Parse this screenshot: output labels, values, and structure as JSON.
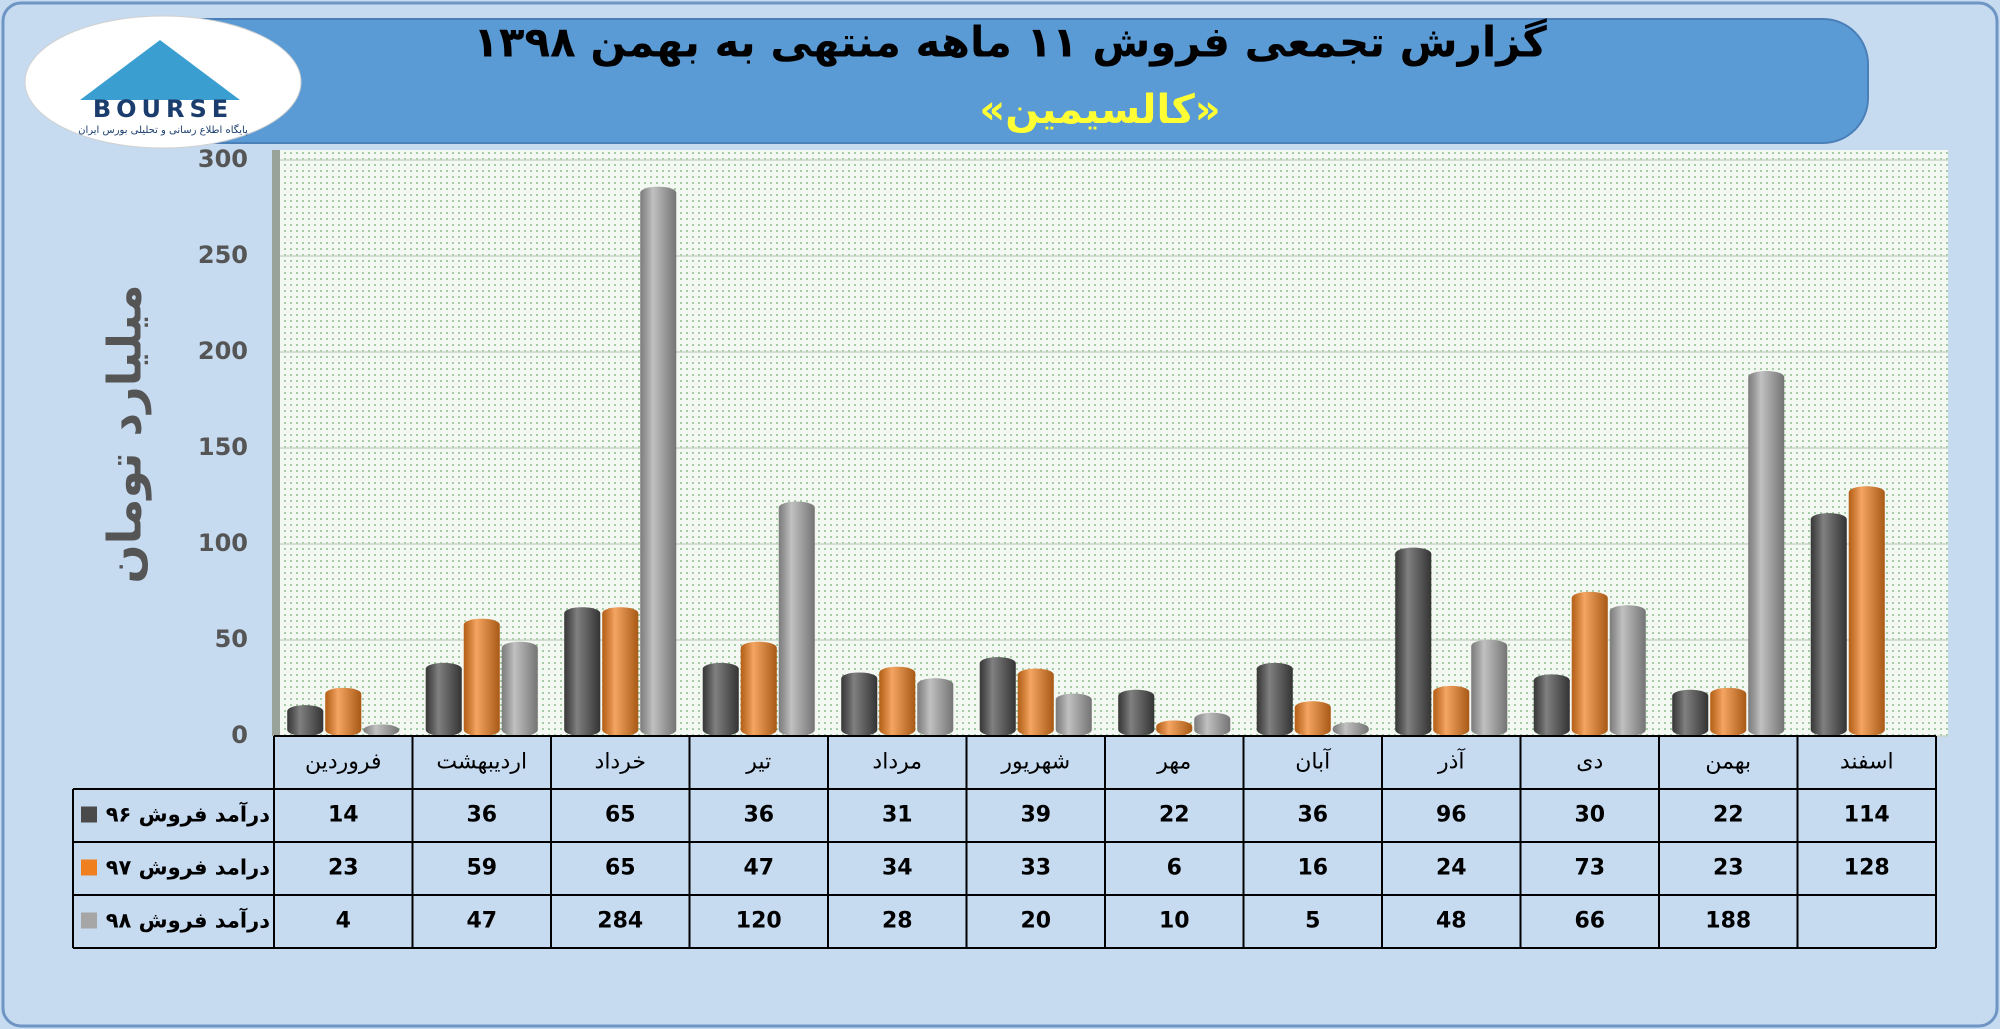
{
  "logo": {
    "brand": "BOURSE",
    "tagline": "پایگاه اطلاع رسانی و تحلیلی بورس ایران"
  },
  "chart_data": {
    "type": "bar",
    "title": "گزارش تجمعی فروش ۱۱ ماهه منتهی به بهمن ۱۳۹۸",
    "subtitle": "«کالسیمین»",
    "y_label": "میلیارد تومان",
    "categories": [
      "فروردین",
      "اردیبهشت",
      "خرداد",
      "تیر",
      "مرداد",
      "شهریور",
      "مهر",
      "آبان",
      "آذر",
      "دی",
      "بهمن",
      "اسفند"
    ],
    "series": [
      {
        "name": "درآمد فروش ۹۶",
        "color": "#4a4a4a",
        "values": [
          14,
          36,
          65,
          36,
          31,
          39,
          22,
          36,
          96,
          30,
          22,
          114
        ]
      },
      {
        "name": "درامد فروش ۹۷",
        "color": "#f07f1f",
        "values": [
          23,
          59,
          65,
          47,
          34,
          33,
          6,
          16,
          24,
          73,
          23,
          128
        ]
      },
      {
        "name": "درآمد فروش ۹۸",
        "color": "#a6a6a6",
        "values": [
          4,
          47,
          284,
          120,
          28,
          20,
          10,
          5,
          48,
          66,
          188,
          null
        ]
      }
    ],
    "ylim": [
      0,
      300
    ],
    "yticks": [
      0,
      50,
      100,
      150,
      200,
      250,
      300
    ],
    "grid": true,
    "data_table": true
  }
}
